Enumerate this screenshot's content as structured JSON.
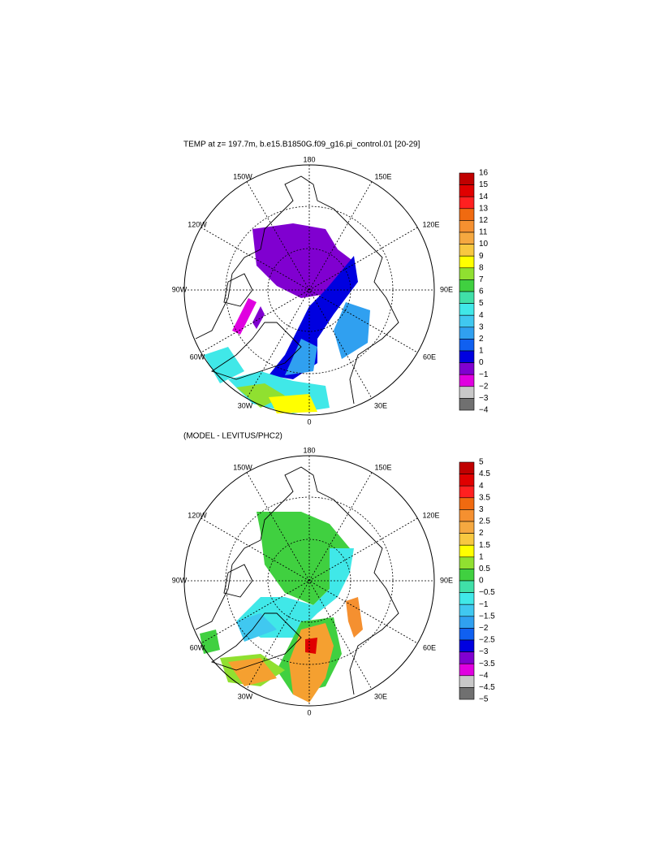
{
  "panels": [
    {
      "title": "TEMP at z= 197.7m, b.e15.B1850G.f09_g16.pi_control.01 [20-29]",
      "lon_labels": [
        "180",
        "150W",
        "150E",
        "120W",
        "120E",
        "90W",
        "90E",
        "60W",
        "60E",
        "30W",
        "30E",
        "0"
      ],
      "colorbar": {
        "labels": [
          "16",
          "15",
          "14",
          "13",
          "12",
          "11",
          "10",
          "9",
          "8",
          "7",
          "6",
          "5",
          "4",
          "3",
          "2",
          "1",
          "0",
          "−1",
          "−2",
          "−3",
          "−4"
        ],
        "colors": [
          "#c00000",
          "#e00000",
          "#ff2020",
          "#f06a10",
          "#f59030",
          "#f5a840",
          "#f8c840",
          "#ffff00",
          "#90e030",
          "#40d040",
          "#40e0a8",
          "#40e8e8",
          "#40c8f0",
          "#30a0f0",
          "#1060f0",
          "#0000e0",
          "#8000d0",
          "#e000e0",
          "#c8c8c8",
          "#707070"
        ]
      }
    },
    {
      "title": "(MODEL - LEVITUS/PHC2)",
      "lon_labels": [
        "180",
        "150W",
        "150E",
        "120W",
        "120E",
        "90W",
        "90E",
        "60W",
        "60E",
        "30W",
        "30E",
        "0"
      ],
      "colorbar": {
        "labels": [
          "5",
          "4.5",
          "4",
          "3.5",
          "3",
          "2.5",
          "2",
          "1.5",
          "1",
          "0.5",
          "0",
          "−0.5",
          "−1",
          "−1.5",
          "−2",
          "−2.5",
          "−3",
          "−3.5",
          "−4",
          "−4.5",
          "−5"
        ],
        "colors": [
          "#c00000",
          "#e00000",
          "#ff2020",
          "#f06a10",
          "#f59030",
          "#f5a840",
          "#f8c840",
          "#ffff00",
          "#90e030",
          "#40d040",
          "#40e0a8",
          "#40e8e8",
          "#40c8f0",
          "#30a0f0",
          "#1060f0",
          "#0000e0",
          "#8000d0",
          "#e000e0",
          "#c8c8c8",
          "#707070"
        ]
      }
    }
  ]
}
